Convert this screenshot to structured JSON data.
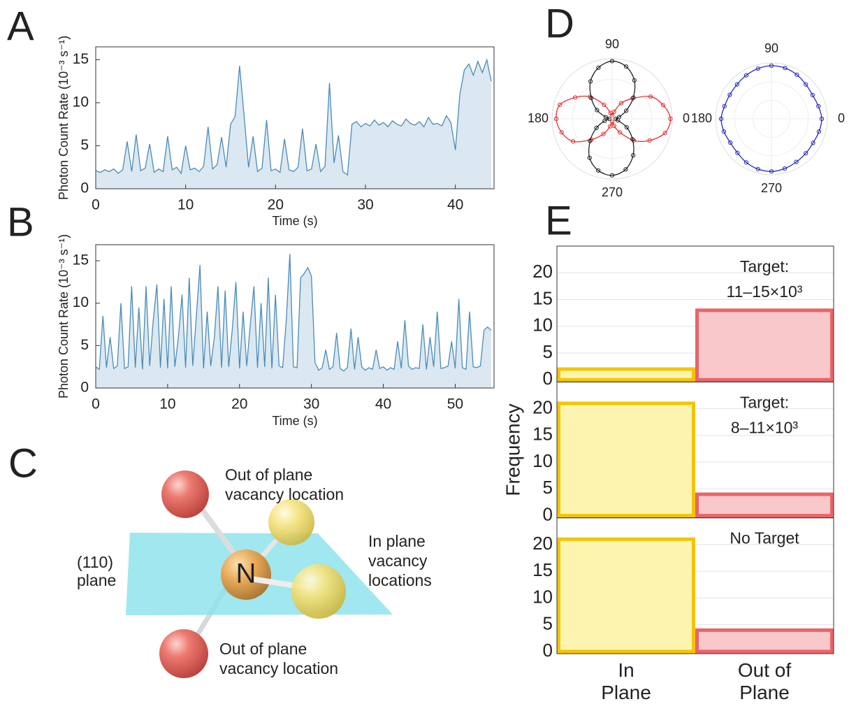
{
  "chart_data": [
    {
      "type": "line",
      "label": "A",
      "ylabel": "Photon Count Rate (10⁻³ s⁻¹)",
      "xlabel": "Time (s)",
      "xlim": [
        0,
        44.3
      ],
      "ylim": [
        0,
        16.5
      ],
      "xticks": [
        0,
        10,
        20,
        30,
        40
      ],
      "yticks": [
        0,
        5,
        10,
        15
      ],
      "area": true,
      "color": "#4a8cb8",
      "fill_color": "#dbe8f1",
      "x": [
        0,
        0.5,
        1,
        1.5,
        2,
        2.5,
        3,
        3.5,
        4,
        4.5,
        5,
        5.5,
        6,
        6.5,
        7,
        7.5,
        8,
        8.5,
        9,
        9.5,
        10,
        10.5,
        11,
        11.5,
        12,
        12.5,
        13,
        13.5,
        14,
        14.5,
        15,
        15.5,
        16,
        16.5,
        17,
        17.5,
        18,
        18.5,
        19,
        19.5,
        20,
        20.5,
        21,
        21.5,
        22,
        22.5,
        23,
        23.5,
        24,
        24.5,
        25,
        25.5,
        26,
        26.5,
        27,
        27.5,
        28,
        28.5,
        29,
        29.5,
        30,
        30.5,
        31,
        31.5,
        32,
        32.5,
        33,
        33.5,
        34,
        34.5,
        35,
        35.5,
        36,
        36.5,
        37,
        37.5,
        38,
        38.5,
        39,
        39.5,
        40,
        40.5,
        41,
        41.5,
        42,
        42.5,
        43,
        43.5,
        44
      ],
      "values": [
        2.1,
        1.9,
        2.2,
        2.0,
        2.3,
        1.8,
        2.2,
        5.5,
        2.0,
        6.3,
        2.1,
        2.4,
        5.2,
        1.9,
        2.3,
        2.0,
        6.1,
        2.2,
        2.5,
        1.8,
        5.0,
        2.2,
        2.4,
        2.0,
        2.6,
        7.2,
        2.3,
        2.8,
        6.0,
        2.5,
        7.5,
        8.4,
        14.3,
        8.5,
        2.5,
        6.1,
        2.0,
        2.4,
        8.0,
        2.1,
        2.3,
        1.9,
        5.8,
        2.2,
        2.0,
        2.5,
        7.0,
        2.1,
        2.3,
        5.2,
        2.0,
        2.6,
        12.3,
        3.0,
        6.2,
        2.0,
        1.6,
        7.5,
        7.8,
        7.2,
        7.6,
        7.3,
        8.0,
        7.4,
        7.7,
        7.2,
        7.9,
        7.5,
        7.3,
        8.1,
        7.6,
        7.4,
        7.8,
        7.2,
        8.3,
        7.5,
        7.6,
        7.3,
        8.5,
        7.7,
        4.5,
        11.0,
        13.8,
        14.5,
        13.2,
        14.8,
        13.5,
        15.0,
        12.5
      ]
    },
    {
      "type": "line",
      "label": "B",
      "ylabel": "Photon Count Rate (10⁻³ s⁻¹)",
      "xlabel": "Time (s)",
      "xlim": [
        0,
        55.4
      ],
      "ylim": [
        0,
        16.9
      ],
      "xticks": [
        0,
        10,
        20,
        30,
        40,
        50
      ],
      "yticks": [
        0,
        5,
        10,
        15
      ],
      "area": true,
      "color": "#4a8cb8",
      "fill_color": "#dbe8f1",
      "x": [
        0,
        0.5,
        1,
        1.5,
        2,
        2.5,
        3,
        3.5,
        4,
        4.5,
        5,
        5.5,
        6,
        6.5,
        7,
        7.5,
        8,
        8.5,
        9,
        9.5,
        10,
        10.5,
        11,
        11.5,
        12,
        12.5,
        13,
        13.5,
        14,
        14.5,
        15,
        15.5,
        16,
        16.5,
        17,
        17.5,
        18,
        18.5,
        19,
        19.5,
        20,
        20.5,
        21,
        21.5,
        22,
        22.5,
        23,
        23.5,
        24,
        24.5,
        25,
        25.5,
        26,
        26.5,
        27,
        27.5,
        28,
        28.5,
        29,
        29.5,
        30,
        30.5,
        31,
        31.5,
        32,
        32.5,
        33,
        33.5,
        34,
        34.5,
        35,
        35.5,
        36,
        36.5,
        37,
        37.5,
        38,
        38.5,
        39,
        39.5,
        40,
        40.5,
        41,
        41.5,
        42,
        42.5,
        43,
        43.5,
        44,
        44.5,
        45,
        45.5,
        46,
        46.5,
        47,
        47.5,
        48,
        48.5,
        49,
        49.5,
        50,
        50.5,
        51,
        51.5,
        52,
        52.5,
        53,
        53.5,
        54,
        54.5,
        55
      ],
      "values": [
        2.5,
        2.2,
        8.5,
        2.4,
        6.0,
        2.3,
        2.6,
        10.0,
        2.3,
        2.5,
        12.0,
        2.4,
        9.5,
        2.2,
        12.0,
        2.6,
        8.0,
        12.2,
        2.4,
        10.5,
        2.3,
        12.0,
        2.5,
        6.0,
        11.0,
        2.4,
        13.0,
        2.6,
        8.5,
        14.5,
        2.3,
        9.0,
        2.6,
        6.0,
        12.0,
        2.4,
        11.5,
        2.5,
        7.0,
        12.5,
        2.3,
        9.0,
        2.6,
        7.5,
        12.0,
        2.4,
        10.0,
        2.5,
        13.0,
        2.3,
        11.0,
        2.6,
        2.4,
        8.0,
        15.8,
        2.5,
        2.4,
        13.0,
        13.5,
        14.2,
        13.2,
        3.0,
        2.1,
        2.4,
        4.5,
        2.2,
        2.5,
        6.5,
        2.3,
        2.0,
        2.4,
        7.0,
        2.2,
        6.0,
        2.5,
        2.1,
        2.4,
        2.2,
        4.5,
        2.3,
        2.5,
        2.1,
        2.4,
        2.2,
        5.5,
        2.3,
        8.0,
        2.6,
        2.2,
        2.4,
        2.3,
        7.5,
        2.2,
        6.0,
        2.5,
        9.0,
        2.3,
        2.4,
        2.6,
        5.5,
        2.3,
        10.5,
        2.4,
        2.2,
        9.0,
        2.5,
        2.4,
        2.6,
        6.8,
        7.2,
        6.8
      ]
    },
    {
      "type": "polar",
      "label": "D",
      "theta": [
        0,
        15,
        30,
        45,
        60,
        75,
        90,
        105,
        120,
        135,
        150,
        165,
        180,
        195,
        210,
        225,
        240,
        255,
        270,
        285,
        300,
        315,
        330,
        345
      ],
      "thetaticks": [
        0,
        90,
        180,
        270
      ],
      "rlim": [
        0,
        1
      ],
      "series": [
        {
          "color": "#e03030",
          "values": [
            0.97,
            0.88,
            0.74,
            0.48,
            0.3,
            0.12,
            0.06,
            0.1,
            0.27,
            0.52,
            0.71,
            0.9,
            0.93,
            0.87,
            0.75,
            0.49,
            0.29,
            0.13,
            0.05,
            0.12,
            0.26,
            0.51,
            0.72,
            0.91
          ]
        },
        {
          "color": "#222222",
          "values": [
            0.06,
            0.12,
            0.27,
            0.5,
            0.74,
            0.9,
            0.96,
            0.88,
            0.72,
            0.49,
            0.29,
            0.11,
            0.05,
            0.13,
            0.3,
            0.52,
            0.75,
            0.89,
            0.94,
            0.87,
            0.7,
            0.48,
            0.28,
            0.1
          ]
        }
      ]
    },
    {
      "type": "polar",
      "theta": [
        0,
        15,
        30,
        45,
        60,
        75,
        90,
        105,
        120,
        135,
        150,
        165,
        180,
        195,
        210,
        225,
        240,
        255,
        270,
        285,
        300,
        315,
        330,
        345
      ],
      "thetaticks": [
        0,
        90,
        180,
        270
      ],
      "rlim": [
        0,
        1
      ],
      "series": [
        {
          "color": "#2828c0",
          "values": [
            0.9,
            0.87,
            0.85,
            0.87,
            0.91,
            0.94,
            0.95,
            0.93,
            0.9,
            0.87,
            0.86,
            0.87,
            0.9,
            0.88,
            0.85,
            0.86,
            0.9,
            0.93,
            0.94,
            0.92,
            0.89,
            0.87,
            0.86,
            0.88
          ]
        }
      ]
    },
    {
      "type": "bar",
      "label": "E",
      "ylabel": "Frequency",
      "categories": [
        "In Plane",
        "Out of Plane"
      ],
      "colors": [
        "#f5c400",
        "#ea6468"
      ],
      "fill_colors": [
        "#fdf4b0",
        "#f9c8ca"
      ],
      "ylim": [
        -0.4,
        25
      ],
      "yticks": [
        0,
        5,
        10,
        15,
        20
      ],
      "grid": true,
      "panels": [
        {
          "annotation": [
            "Target:",
            "11–15×10³"
          ],
          "values": [
            2,
            13
          ]
        },
        {
          "annotation": [
            "Target:",
            "8–11×10³"
          ],
          "values": [
            21,
            4
          ]
        },
        {
          "annotation": [
            "No Target"
          ],
          "values": [
            21,
            4
          ]
        }
      ]
    }
  ],
  "diagram": {
    "label": "C",
    "plane_label": [
      "(110)",
      "plane"
    ],
    "atom_label": "N",
    "top_label": [
      "Out of plane",
      "vacancy location"
    ],
    "right_label": [
      "In plane",
      "vacancy",
      "locations"
    ],
    "bottom_label": [
      "Out of plane",
      "vacancy location"
    ]
  }
}
